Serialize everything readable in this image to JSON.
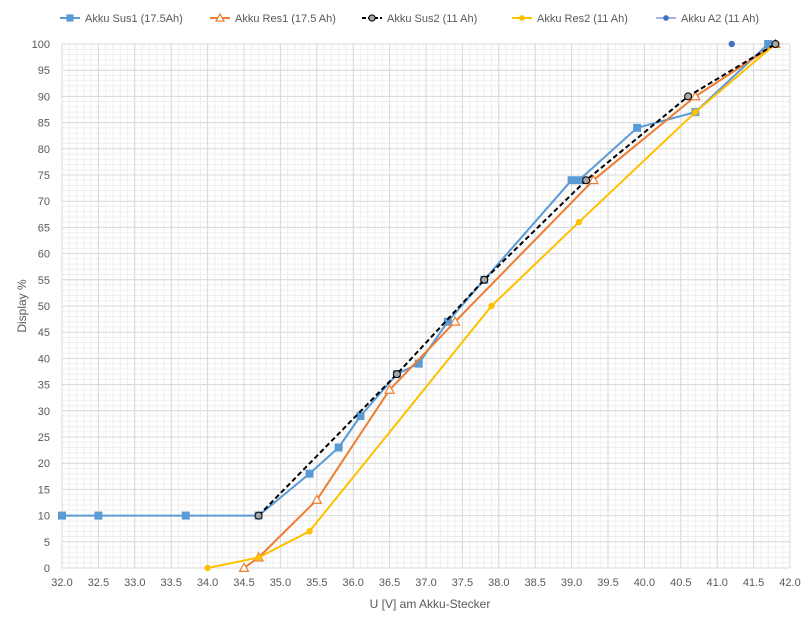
{
  "chart_data": {
    "type": "scatter",
    "title": "",
    "xlabel": "U [V] am Akku-Stecker",
    "ylabel": "Display %",
    "xlim": [
      32.0,
      42.0
    ],
    "ylim": [
      0,
      100
    ],
    "x_ticks": [
      "32.0",
      "32.5",
      "33.0",
      "33.5",
      "34.0",
      "34.5",
      "35.0",
      "35.5",
      "36.0",
      "36.5",
      "37.0",
      "37.5",
      "38.0",
      "38.5",
      "39.0",
      "39.5",
      "40.0",
      "40.5",
      "41.0",
      "41.5",
      "42.0"
    ],
    "y_ticks": [
      "0",
      "5",
      "10",
      "15",
      "20",
      "25",
      "30",
      "35",
      "40",
      "45",
      "50",
      "55",
      "60",
      "65",
      "70",
      "75",
      "80",
      "85",
      "90",
      "95",
      "100"
    ],
    "grid": true,
    "legend_position": "top",
    "series": [
      {
        "name": "Akku Sus1 (17.5Ah)",
        "color": "#5B9BD5",
        "marker": "square",
        "line": "solid",
        "points": [
          [
            32.0,
            10
          ],
          [
            32.5,
            10
          ],
          [
            33.7,
            10
          ],
          [
            34.7,
            10
          ],
          [
            35.4,
            18
          ],
          [
            35.8,
            23
          ],
          [
            36.1,
            29
          ],
          [
            36.6,
            37
          ],
          [
            36.9,
            39
          ],
          [
            37.3,
            47
          ],
          [
            37.8,
            55
          ],
          [
            39.0,
            74
          ],
          [
            39.1,
            74
          ],
          [
            39.9,
            84
          ],
          [
            40.7,
            87
          ],
          [
            41.7,
            100
          ]
        ]
      },
      {
        "name": "Akku Res1 (17.5 Ah)",
        "color": "#ED7D31",
        "marker": "triangle",
        "line": "solid",
        "points": [
          [
            34.5,
            0
          ],
          [
            34.7,
            2
          ],
          [
            35.5,
            13
          ],
          [
            36.5,
            34
          ],
          [
            37.4,
            47
          ],
          [
            39.3,
            74
          ],
          [
            40.7,
            90
          ],
          [
            41.8,
            100
          ]
        ]
      },
      {
        "name": "Akku Sus2 (11 Ah)",
        "color": "#000000",
        "marker": "circle-gray",
        "line": "dashed",
        "points": [
          [
            34.7,
            10
          ],
          [
            36.6,
            37
          ],
          [
            37.8,
            55
          ],
          [
            39.2,
            74
          ],
          [
            40.6,
            90
          ],
          [
            41.8,
            100
          ]
        ]
      },
      {
        "name": "Akku Res2 (11 Ah)",
        "color": "#FFC000",
        "marker": "circle",
        "line": "solid",
        "points": [
          [
            34.0,
            0
          ],
          [
            34.7,
            2
          ],
          [
            35.4,
            7
          ],
          [
            37.9,
            50
          ],
          [
            39.1,
            66
          ],
          [
            40.7,
            87
          ],
          [
            41.8,
            100
          ]
        ]
      },
      {
        "name": "Akku A2 (11 Ah)",
        "color": "#4472C4",
        "marker": "circle",
        "line": "none",
        "points": [
          [
            41.2,
            100
          ]
        ]
      }
    ]
  }
}
